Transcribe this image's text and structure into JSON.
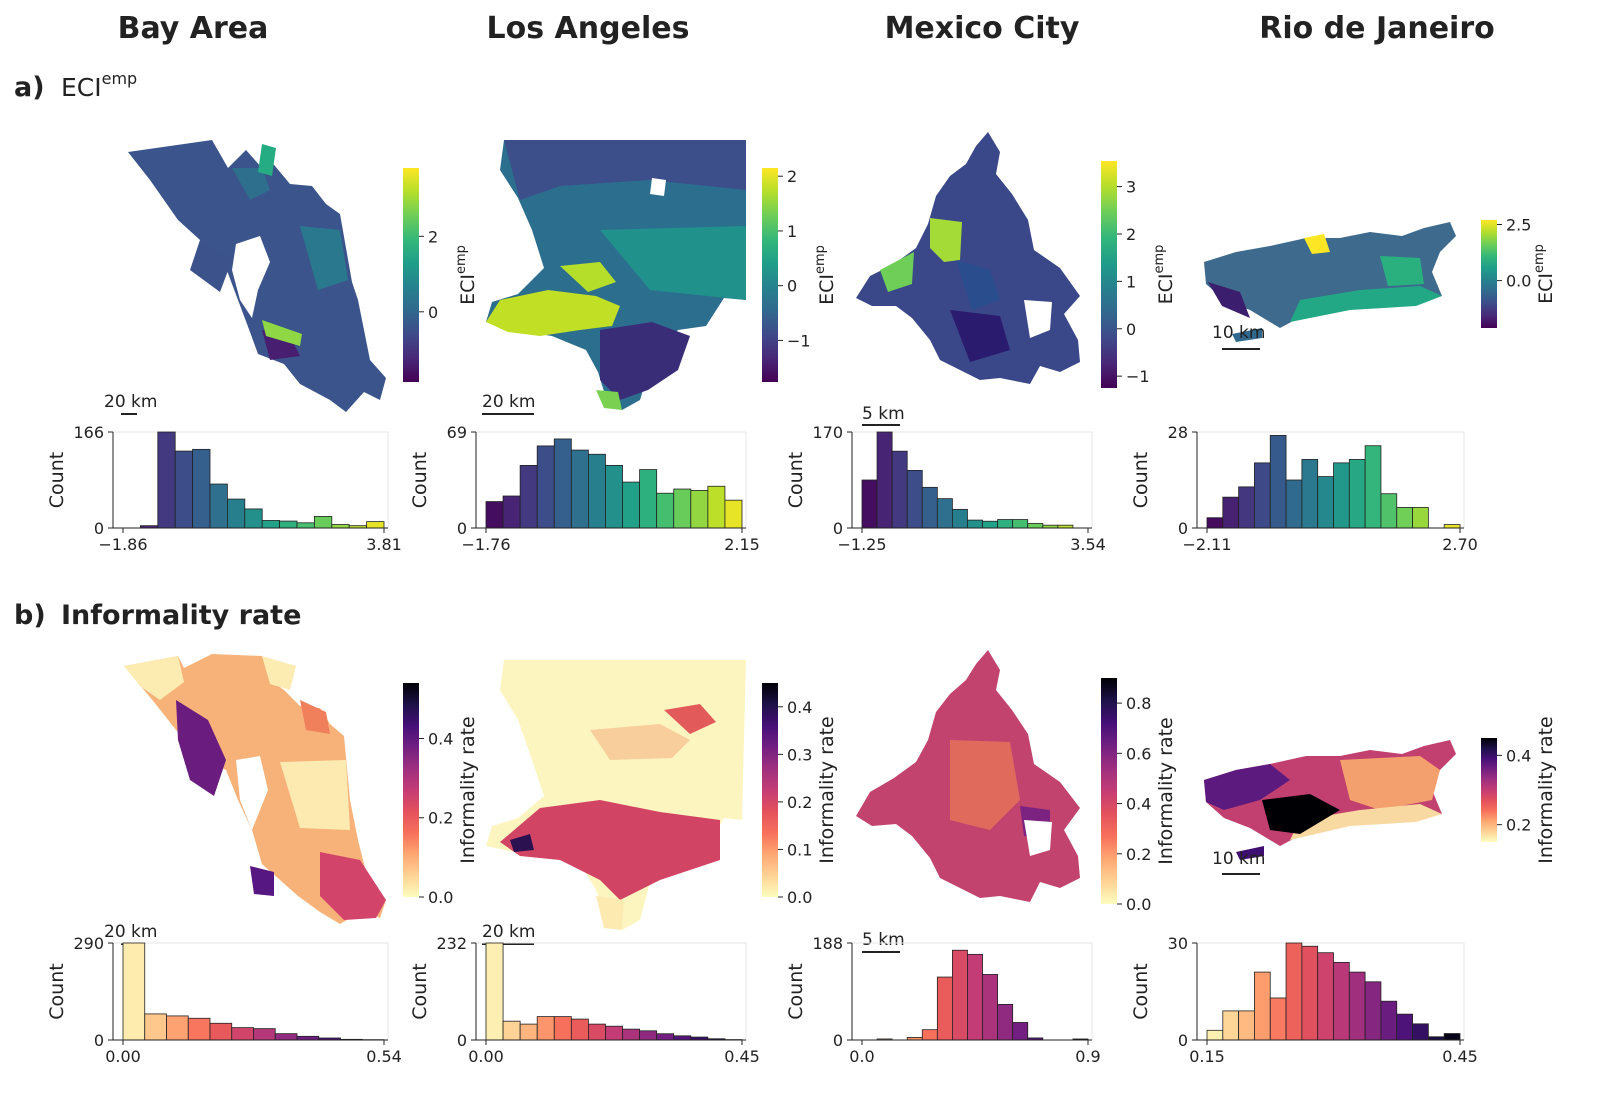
{
  "cities": [
    "Bay Area",
    "Los Angeles",
    "Mexico City",
    "Rio de Janeiro"
  ],
  "panels": [
    {
      "label": "a)",
      "title_main": "ECI",
      "title_sup": "emp",
      "title_bold": false
    },
    {
      "label": "b)",
      "title_main": "Informality rate",
      "title_sup": "",
      "title_bold": true
    }
  ],
  "colorbar_labels": {
    "a": {
      "main": "ECI",
      "sup": "emp"
    },
    "b": {
      "main": "Informality rate",
      "sup": ""
    }
  },
  "hist_ylabel": "Count",
  "colors": {
    "viridis": [
      "#440154",
      "#482878",
      "#3e4a89",
      "#31688e",
      "#26828e",
      "#1f9e89",
      "#35b779",
      "#6ece58",
      "#b5de2b",
      "#fde725"
    ],
    "magma_r": [
      "#fcfdbf",
      "#fed395",
      "#fea772",
      "#f7705c",
      "#e3515c",
      "#c43c75",
      "#9e2f7f",
      "#721f81",
      "#451077",
      "#1d1147",
      "#000004"
    ]
  },
  "maps": [
    {
      "panel": "a",
      "city": "Bay Area",
      "scale_label": "20 km",
      "cbar_ticks": [
        "0",
        "2"
      ],
      "cbar_min": -1.86,
      "cbar_max": 3.81
    },
    {
      "panel": "a",
      "city": "Los Angeles",
      "scale_label": "20 km",
      "cbar_ticks": [
        "−1",
        "0",
        "1",
        "2"
      ],
      "cbar_min": -1.76,
      "cbar_max": 2.15
    },
    {
      "panel": "a",
      "city": "Mexico City",
      "scale_label": "5 km",
      "cbar_ticks": [
        "−1",
        "0",
        "1",
        "2",
        "3"
      ],
      "cbar_min": -1.25,
      "cbar_max": 3.54
    },
    {
      "panel": "a",
      "city": "Rio de Janeiro",
      "scale_label": "10 km",
      "cbar_ticks": [
        "0.0",
        "2.5"
      ],
      "cbar_min": -2.11,
      "cbar_max": 2.7
    },
    {
      "panel": "b",
      "city": "Bay Area",
      "scale_label": "20 km",
      "cbar_ticks": [
        "0.0",
        "0.2",
        "0.4"
      ],
      "cbar_min": 0.0,
      "cbar_max": 0.54
    },
    {
      "panel": "b",
      "city": "Los Angeles",
      "scale_label": "20 km",
      "cbar_ticks": [
        "0.0",
        "0.1",
        "0.2",
        "0.3",
        "0.4"
      ],
      "cbar_min": 0.0,
      "cbar_max": 0.45
    },
    {
      "panel": "b",
      "city": "Mexico City",
      "scale_label": "5 km",
      "cbar_ticks": [
        "0.0",
        "0.2",
        "0.4",
        "0.6",
        "0.8"
      ],
      "cbar_min": 0.0,
      "cbar_max": 0.9
    },
    {
      "panel": "b",
      "city": "Rio de Janeiro",
      "scale_label": "10 km",
      "cbar_ticks": [
        "0.2",
        "0.4"
      ],
      "cbar_min": 0.15,
      "cbar_max": 0.45
    }
  ],
  "chart_data": [
    {
      "type": "bar",
      "panel": "a",
      "city": "Bay Area",
      "ylabel": "Count",
      "ylim": [
        0,
        166
      ],
      "yticks": [
        "0",
        "166"
      ],
      "xticks": [
        "−1.86",
        "3.81"
      ],
      "xlim": [
        -1.86,
        3.81
      ],
      "values": [
        0,
        4,
        166,
        133,
        136,
        76,
        50,
        33,
        13,
        12,
        9,
        20,
        6,
        4,
        11
      ]
    },
    {
      "type": "bar",
      "panel": "a",
      "city": "Los Angeles",
      "ylabel": "Count",
      "ylim": [
        0,
        69
      ],
      "yticks": [
        "0",
        "69"
      ],
      "xticks": [
        "−1.76",
        "2.15"
      ],
      "xlim": [
        -1.76,
        2.15
      ],
      "values": [
        19,
        23,
        45,
        59,
        64,
        56,
        53,
        45,
        33,
        42,
        25,
        28,
        27,
        30,
        20
      ]
    },
    {
      "type": "bar",
      "panel": "a",
      "city": "Mexico City",
      "ylabel": "Count",
      "ylim": [
        0,
        170
      ],
      "yticks": [
        "0",
        "170"
      ],
      "xticks": [
        "−1.25",
        "3.54"
      ],
      "xlim": [
        -1.25,
        3.54
      ],
      "values": [
        85,
        170,
        136,
        102,
        72,
        52,
        33,
        14,
        12,
        15,
        15,
        8,
        5,
        5,
        0
      ]
    },
    {
      "type": "bar",
      "panel": "a",
      "city": "Rio de Janeiro",
      "ylabel": "Count",
      "ylim": [
        0,
        28
      ],
      "yticks": [
        "0",
        "28"
      ],
      "xticks": [
        "−2.11",
        "2.70"
      ],
      "xlim": [
        -2.11,
        2.7
      ],
      "values": [
        3,
        9,
        12,
        19,
        27,
        14,
        20,
        15,
        19,
        20,
        24,
        10,
        6,
        6,
        0,
        1
      ]
    },
    {
      "type": "bar",
      "panel": "b",
      "city": "Bay Area",
      "ylabel": "Count",
      "ylim": [
        0,
        290
      ],
      "yticks": [
        "0",
        "290"
      ],
      "xticks": [
        "0.00",
        "0.54"
      ],
      "xlim": [
        0.0,
        0.54
      ],
      "values": [
        290,
        78,
        72,
        65,
        50,
        37,
        34,
        19,
        11,
        6,
        2,
        1
      ]
    },
    {
      "type": "bar",
      "panel": "b",
      "city": "Los Angeles",
      "ylabel": "Count",
      "ylim": [
        0,
        232
      ],
      "yticks": [
        "0",
        "232"
      ],
      "xticks": [
        "0.00",
        "0.45"
      ],
      "xlim": [
        0.0,
        0.45
      ],
      "values": [
        232,
        45,
        38,
        56,
        56,
        50,
        38,
        33,
        26,
        22,
        15,
        10,
        7,
        3,
        1
      ]
    },
    {
      "type": "bar",
      "panel": "b",
      "city": "Mexico City",
      "ylabel": "Count",
      "ylim": [
        0,
        188
      ],
      "yticks": [
        "0",
        "188"
      ],
      "xticks": [
        "0.0",
        "0.9"
      ],
      "xlim": [
        0.0,
        0.9
      ],
      "values": [
        0,
        2,
        0,
        5,
        20,
        122,
        174,
        166,
        127,
        69,
        34,
        4,
        0,
        0,
        2
      ]
    },
    {
      "type": "bar",
      "panel": "b",
      "city": "Rio de Janeiro",
      "ylabel": "Count",
      "ylim": [
        0,
        30
      ],
      "yticks": [
        "0",
        "30"
      ],
      "xticks": [
        "0.15",
        "0.45"
      ],
      "xlim": [
        0.15,
        0.45
      ],
      "values": [
        3,
        9,
        9,
        21,
        13,
        30,
        29,
        27,
        24,
        21,
        18,
        12,
        8,
        5,
        1,
        2
      ]
    }
  ]
}
